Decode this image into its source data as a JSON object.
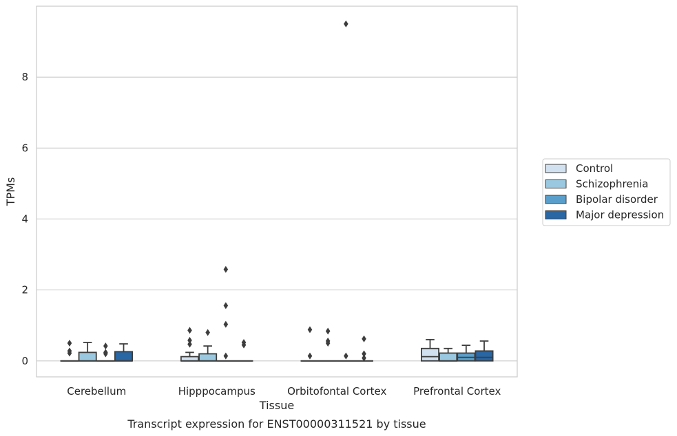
{
  "chart_data": {
    "type": "box",
    "title": "",
    "caption": "Transcript expression for ENST00000311521 by tissue",
    "xlabel": "Tissue",
    "ylabel": "TPMs",
    "ylim": [
      -0.45,
      10.0
    ],
    "yticks": [
      0,
      2,
      4,
      6,
      8
    ],
    "grid": "horizontal",
    "legend_position": "right",
    "categories": [
      "Cerebellum",
      "Hipppocampus",
      "Orbitofontal Cortex",
      "Prefrontal Cortex"
    ],
    "series": [
      {
        "name": "Control",
        "color": "#d1e1f0",
        "boxes": [
          {
            "q1": 0,
            "median": 0,
            "q3": 0,
            "whislo": 0,
            "whishi": 0,
            "fliers": [
              0.5,
              0.28,
              0.22
            ]
          },
          {
            "q1": 0,
            "median": 0,
            "q3": 0.12,
            "whislo": 0,
            "whishi": 0.24,
            "fliers": [
              0.86,
              0.58,
              0.47
            ]
          },
          {
            "q1": 0,
            "median": 0,
            "q3": 0,
            "whislo": 0,
            "whishi": 0,
            "fliers": [
              0.88,
              0.14
            ]
          },
          {
            "q1": 0,
            "median": 0.12,
            "q3": 0.35,
            "whislo": 0,
            "whishi": 0.6,
            "fliers": []
          }
        ]
      },
      {
        "name": "Schizophrenia",
        "color": "#9ac8e0",
        "boxes": [
          {
            "q1": 0,
            "median": 0,
            "q3": 0.24,
            "whislo": 0,
            "whishi": 0.52,
            "fliers": []
          },
          {
            "q1": 0,
            "median": 0,
            "q3": 0.2,
            "whislo": 0,
            "whishi": 0.42,
            "fliers": [
              0.8
            ]
          },
          {
            "q1": 0,
            "median": 0,
            "q3": 0,
            "whislo": 0,
            "whishi": 0,
            "fliers": [
              0.84,
              0.56,
              0.5
            ]
          },
          {
            "q1": 0,
            "median": 0,
            "q3": 0.22,
            "whislo": 0,
            "whishi": 0.35,
            "fliers": []
          }
        ]
      },
      {
        "name": "Bipolar disorder",
        "color": "#5a9fcb",
        "boxes": [
          {
            "q1": 0,
            "median": 0,
            "q3": 0,
            "whislo": 0,
            "whishi": 0,
            "fliers": [
              0.42,
              0.24,
              0.2
            ]
          },
          {
            "q1": 0,
            "median": 0,
            "q3": 0,
            "whislo": 0,
            "whishi": 0,
            "fliers": [
              2.58,
              1.56,
              1.03,
              0.14
            ]
          },
          {
            "q1": 0,
            "median": 0,
            "q3": 0,
            "whislo": 0,
            "whishi": 0,
            "fliers": [
              9.5,
              0.14
            ]
          },
          {
            "q1": 0,
            "median": 0.1,
            "q3": 0.22,
            "whislo": 0,
            "whishi": 0.44,
            "fliers": []
          }
        ]
      },
      {
        "name": "Major depression",
        "color": "#2866a4",
        "boxes": [
          {
            "q1": 0,
            "median": 0,
            "q3": 0.26,
            "whislo": 0,
            "whishi": 0.48,
            "fliers": []
          },
          {
            "q1": 0,
            "median": 0,
            "q3": 0,
            "whislo": 0,
            "whishi": 0,
            "fliers": [
              0.52,
              0.45
            ]
          },
          {
            "q1": 0,
            "median": 0,
            "q3": 0,
            "whislo": 0,
            "whishi": 0,
            "fliers": [
              0.62,
              0.2,
              0.08
            ]
          },
          {
            "q1": 0,
            "median": 0.1,
            "q3": 0.28,
            "whislo": 0,
            "whishi": 0.56,
            "fliers": []
          }
        ]
      }
    ]
  }
}
